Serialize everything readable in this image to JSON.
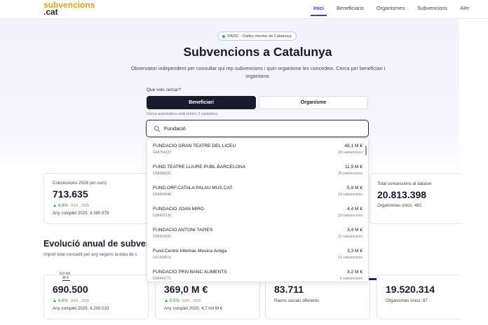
{
  "nav": {
    "logo_line1": "subvencions",
    "logo_line2": ".cat",
    "links": [
      "Inici",
      "Beneficiaris",
      "Organismes",
      "Subvencions",
      "Aler"
    ],
    "active_index": 0
  },
  "hero": {
    "badge": "RAISC · Dades obertes de Catalunya",
    "title": "Subvencions a Catalunya",
    "subtitle": "Observatori independent per consultar qui rep subvencions i quin organisme les concedeix. Cerca per beneficiari i organisme.",
    "question": "Què vols cercar?",
    "tab_beneficiari": "Beneficiari",
    "tab_organisme": "Organisme",
    "hint": "Cerca automàtica amb mínim 2 caràcters.",
    "search_value": "Fundació"
  },
  "results": [
    {
      "name": "FUNDACIO GRAN TEATRE DEL LICEU",
      "nif": "G68754223",
      "amount": "48,1 M €",
      "count": "33 subvencions"
    },
    {
      "name": "FUND.TEATRE LLIURE PUBL.BARCELONA",
      "nif": "G58688931",
      "amount": "11,9 M €",
      "count": "25 subvencions"
    },
    {
      "name": "FUND.ORF.CATALA PALAU MUS.CAT.",
      "nif": "G59684648",
      "amount": "5,9 M €",
      "count": "19 subvencions"
    },
    {
      "name": "FUNDACIO JOAN MIRO",
      "nif": "G08429136",
      "amount": "4,4 M €",
      "count": "19 subvencions"
    },
    {
      "name": "FUNDACIO ANTONI TAPIES",
      "nif": "G58269582",
      "amount": "3,4 M €",
      "count": "15 subvencions"
    },
    {
      "name": "Fund.Centre Internac.Musica Antiga",
      "nif": "G61434815",
      "amount": "3,3 M €",
      "count": "14 subvencions"
    },
    {
      "name": "FUNDACIO PRIV.BANC ALIMENTS",
      "nif": "G58443771",
      "amount": "3,2 M €",
      "count": "6 subvencions"
    }
  ],
  "stats_row1": {
    "c1": {
      "label": "Concessions 2026 (en curs)",
      "value": "713.635",
      "trend": "▲ 6.9%",
      "trend_years": "2024→2025",
      "foot": "Any complet 2025: 4.380.879"
    },
    "c4": {
      "label": "Total concessions al dataset",
      "value": "20.813.398",
      "foot": "Organismes únics: 482"
    }
  },
  "section": {
    "title": "Evolució anual de subvenc",
    "subtitle": "Import total concedit per any segons la data de c"
  },
  "mini_label": {
    "line1": "6,0 mil",
    "line2": "M €"
  },
  "stats_row2": {
    "d1": {
      "value": "690.500",
      "trend": "▲ 6.6%",
      "trend_years": "2024→2025",
      "foot": "Any complet 2025: 4.200.033"
    },
    "d2": {
      "value": "369,0 M €",
      "trend": "▲ 0.5%",
      "trend_years": "2024→2025",
      "foot": "Any complet 2025: 4,7 mil M €"
    },
    "d3": {
      "value": "83.711",
      "foot": "Raons socials diferents"
    },
    "d4": {
      "value": "19.520.314",
      "foot": "Organismes únics: 67"
    }
  },
  "colors": {
    "accent": "#4a35c8",
    "primary_dark": "#1a1a2e",
    "positive": "#2a8f4a",
    "logo_gold": "#e0a020"
  }
}
